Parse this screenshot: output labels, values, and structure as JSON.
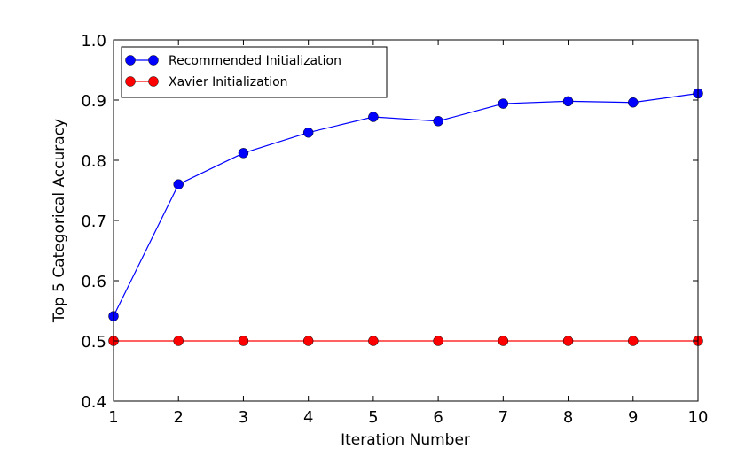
{
  "chart_data": {
    "type": "line",
    "title": "",
    "xlabel": "Iteration Number",
    "ylabel": "Top 5 Categorical Accuracy",
    "x": [
      1,
      2,
      3,
      4,
      5,
      6,
      7,
      8,
      9,
      10
    ],
    "xlim": [
      1,
      10
    ],
    "ylim": [
      0.4,
      1.0
    ],
    "xticks": [
      1,
      2,
      3,
      4,
      5,
      6,
      7,
      8,
      9,
      10
    ],
    "xtick_labels": [
      "1",
      "2",
      "3",
      "4",
      "5",
      "6",
      "7",
      "8",
      "9",
      "10"
    ],
    "yticks": [
      0.4,
      0.5,
      0.6,
      0.7,
      0.8,
      0.9,
      1.0
    ],
    "ytick_labels": [
      "0.4",
      "0.5",
      "0.6",
      "0.7",
      "0.8",
      "0.9",
      "1.0"
    ],
    "grid": false,
    "legend_position": "top-left",
    "series": [
      {
        "name": "Recommended Initialization",
        "color": "#0000ff",
        "marker": "circle",
        "values": [
          0.541,
          0.76,
          0.812,
          0.846,
          0.872,
          0.865,
          0.894,
          0.898,
          0.896,
          0.911
        ]
      },
      {
        "name": "Xavier Initialization",
        "color": "#ff0000",
        "marker": "circle",
        "values": [
          0.5,
          0.5,
          0.5,
          0.5,
          0.5,
          0.5,
          0.5,
          0.5,
          0.5,
          0.5
        ]
      }
    ]
  }
}
